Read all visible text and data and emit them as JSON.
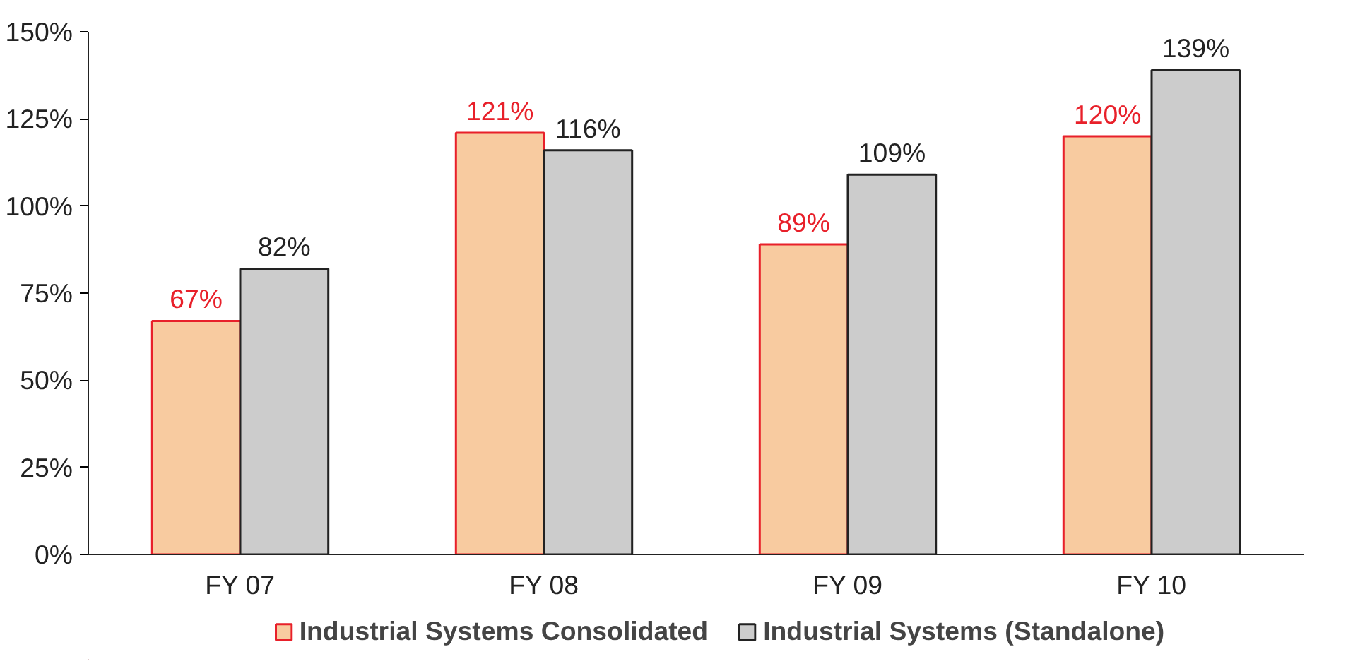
{
  "chart_data": {
    "type": "bar",
    "categories": [
      "FY 07",
      "FY 08",
      "FY 09",
      "FY 10"
    ],
    "series": [
      {
        "name": "Industrial Systems Consolidated",
        "color": "#f8cba0",
        "values": [
          67,
          121,
          89,
          120
        ],
        "value_labels": [
          "67%",
          "121%",
          "89%",
          "120%"
        ]
      },
      {
        "name": "Industrial Systems (Standalone)",
        "color": "#cccccc",
        "values": [
          82,
          116,
          109,
          139
        ],
        "value_labels": [
          "82%",
          "116%",
          "109%",
          "139%"
        ]
      }
    ],
    "ylim": [
      0,
      150
    ],
    "yticks": [
      {
        "value": 0,
        "label": "0%"
      },
      {
        "value": 25,
        "label": "25%"
      },
      {
        "value": 50,
        "label": "50%"
      },
      {
        "value": 75,
        "label": "75%"
      },
      {
        "value": 100,
        "label": "100%"
      },
      {
        "value": 125,
        "label": "125%"
      },
      {
        "value": 150,
        "label": "150%"
      }
    ],
    "grid": false,
    "legend": "bottom"
  }
}
